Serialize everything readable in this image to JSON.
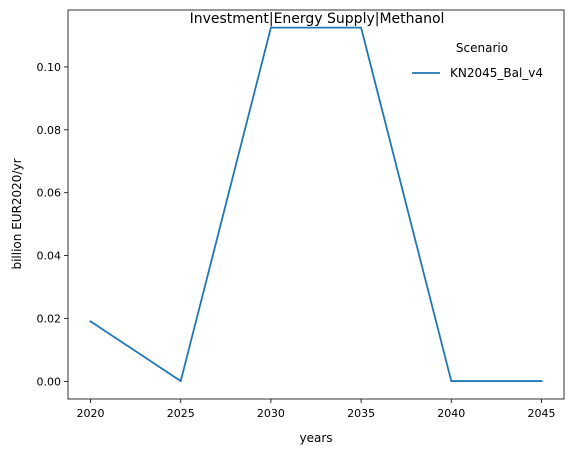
{
  "chart_data": {
    "type": "line",
    "title": "Investment|Energy Supply|Methanol",
    "xlabel": "years",
    "ylabel": "billion EUR2020/yr",
    "x": [
      2020,
      2025,
      2030,
      2035,
      2040,
      2045
    ],
    "x_ticks": [
      "2020",
      "2025",
      "2030",
      "2035",
      "2040",
      "2045"
    ],
    "y_ticks": [
      "0.00",
      "0.02",
      "0.04",
      "0.06",
      "0.08",
      "0.10"
    ],
    "xlim": [
      2018.75,
      2046.25
    ],
    "ylim": [
      -0.0056,
      0.1181
    ],
    "legend": {
      "title": "Scenario",
      "placement": "top-right"
    },
    "grid": false,
    "series": [
      {
        "name": "KN2045_Bal_v4",
        "color": "#1f77b4",
        "values": [
          0.0191,
          0.0001,
          0.1125,
          0.1125,
          0.0001,
          0.0001
        ]
      }
    ]
  }
}
